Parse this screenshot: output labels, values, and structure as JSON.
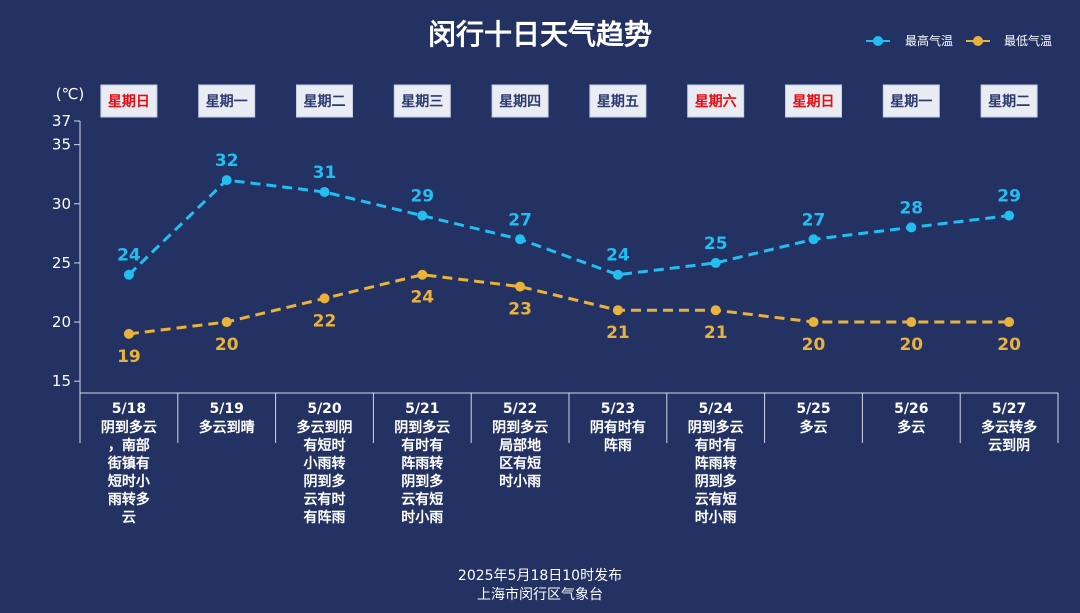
{
  "chart_data": {
    "type": "line",
    "title": "闵行十日天气趋势",
    "ylabel": "(℃)",
    "xlabel": "",
    "ylim": [
      14,
      37
    ],
    "yticks": [
      15,
      20,
      25,
      30,
      35,
      37
    ],
    "grid": false,
    "legend_position": "top-right",
    "categories": [
      "5/18",
      "5/19",
      "5/20",
      "5/21",
      "5/22",
      "5/23",
      "5/24",
      "5/25",
      "5/26",
      "5/27"
    ],
    "weekdays": [
      "星期日",
      "星期一",
      "星期二",
      "星期三",
      "星期四",
      "星期五",
      "星期六",
      "星期日",
      "星期一",
      "星期二"
    ],
    "weekend": [
      true,
      false,
      false,
      false,
      false,
      false,
      true,
      true,
      false,
      false
    ],
    "weekend_color": "#e60b12",
    "weekday_color": "#2c3a6e",
    "weather": [
      [
        "阴到多云",
        "，南部",
        "街镇有",
        "短时小",
        "雨转多",
        "云"
      ],
      [
        "多云到晴"
      ],
      [
        "多云到阴",
        "有短时",
        "小雨转",
        "阴到多",
        "云有时",
        "有阵雨"
      ],
      [
        "阴到多云",
        "有时有",
        "阵雨转",
        "阴到多",
        "云有短",
        "时小雨"
      ],
      [
        "阴到多云",
        "局部地",
        "区有短",
        "时小雨"
      ],
      [
        "阴有时有",
        "阵雨"
      ],
      [
        "阴到多云",
        "有时有",
        "阵雨转",
        "阴到多",
        "云有短",
        "时小雨"
      ],
      [
        "多云"
      ],
      [
        "多云"
      ],
      [
        "多云转多",
        "云到阴"
      ]
    ],
    "series": [
      {
        "name": "最高气温",
        "color": "#22bef2",
        "values": [
          24,
          32,
          31,
          29,
          27,
          24,
          25,
          27,
          28,
          29
        ]
      },
      {
        "name": "最低气温",
        "color": "#e8b23c",
        "values": [
          19,
          20,
          22,
          24,
          23,
          21,
          21,
          20,
          20,
          20
        ]
      }
    ]
  },
  "footer": {
    "issued": "2025年5月18日10时发布",
    "issuer": "上海市闵行区气象台"
  }
}
